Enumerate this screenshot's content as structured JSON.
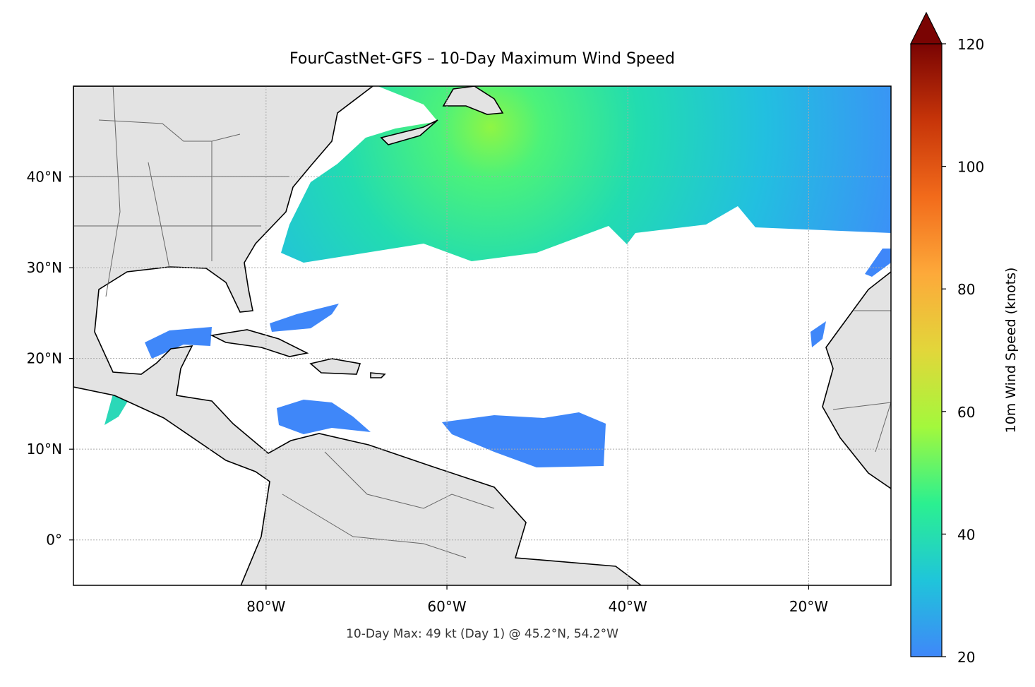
{
  "chart_data": {
    "type": "map",
    "title": "FourCastNet-GFS – 10-Day Maximum Wind Speed",
    "annotation": "10-Day Max: 49 kt (Day 1) @ 45.2°N, 54.2°W",
    "xlim": [
      -101.3,
      -10.9
    ],
    "ylim": [
      -5,
      50
    ],
    "xticks": [
      {
        "value": -80,
        "label": "80°W"
      },
      {
        "value": -60,
        "label": "60°W"
      },
      {
        "value": -40,
        "label": "40°W"
      },
      {
        "value": -20,
        "label": "20°W"
      }
    ],
    "yticks": [
      {
        "value": 0,
        "label": "0°"
      },
      {
        "value": 10,
        "label": "10°N"
      },
      {
        "value": 20,
        "label": "20°N"
      },
      {
        "value": 30,
        "label": "30°N"
      },
      {
        "value": 40,
        "label": "40°N"
      }
    ],
    "grid": true,
    "colorbar": {
      "label": "10m Wind Speed (knots)",
      "lim": [
        20,
        120
      ],
      "ticks": [
        20,
        40,
        60,
        80,
        100,
        120
      ],
      "extend": "max",
      "colors": [
        "#3f87f9",
        "#1fc5da",
        "#2bf090",
        "#a3f83c",
        "#e2d63a",
        "#fda93a",
        "#f26b1b",
        "#c73509",
        "#7a0403"
      ]
    }
  }
}
